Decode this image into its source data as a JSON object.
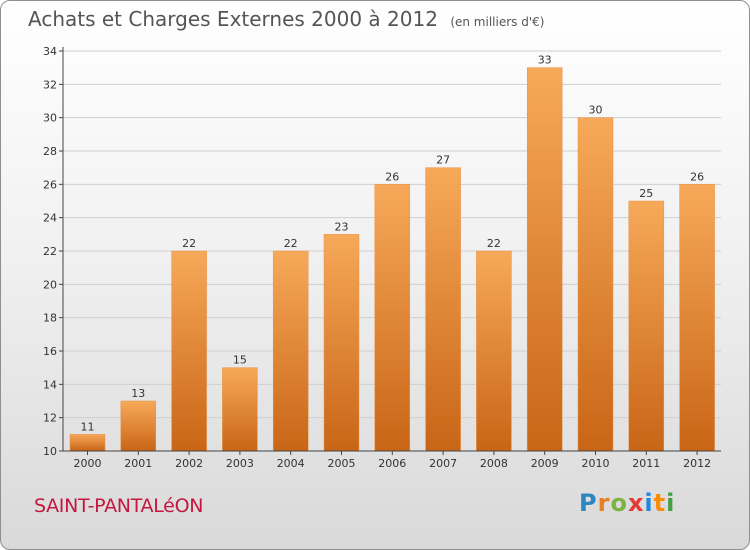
{
  "title": "Achats et Charges Externes 2000 à 2012",
  "subtitle": "(en milliers d'€)",
  "commune": "SAINT-PANTALéON",
  "logo": {
    "letters": [
      {
        "ch": "P",
        "color": "#2e86c1"
      },
      {
        "ch": "r",
        "color": "#e67e22"
      },
      {
        "ch": "o",
        "color": "#7cb342"
      },
      {
        "ch": "x",
        "color": "#e53935"
      },
      {
        "ch": "i",
        "color": "#1e88e5"
      },
      {
        "ch": "t",
        "color": "#fb8c00"
      },
      {
        "ch": "i",
        "color": "#43a047"
      }
    ]
  },
  "colors": {
    "bar_light": "#f6a959",
    "bar_dark": "#c96516",
    "grid": "#cfcfcf",
    "axis": "#444444"
  },
  "chart_data": {
    "type": "bar",
    "categories": [
      "2000",
      "2001",
      "2002",
      "2003",
      "2004",
      "2005",
      "2006",
      "2007",
      "2008",
      "2009",
      "2010",
      "2011",
      "2012"
    ],
    "values": [
      11,
      13,
      22,
      15,
      22,
      23,
      26,
      27,
      22,
      33,
      30,
      25,
      26
    ],
    "ylim": [
      10,
      34
    ],
    "yticks": [
      10,
      12,
      14,
      16,
      18,
      20,
      22,
      24,
      26,
      28,
      30,
      32,
      34
    ],
    "grid": true,
    "data_labels": true
  }
}
